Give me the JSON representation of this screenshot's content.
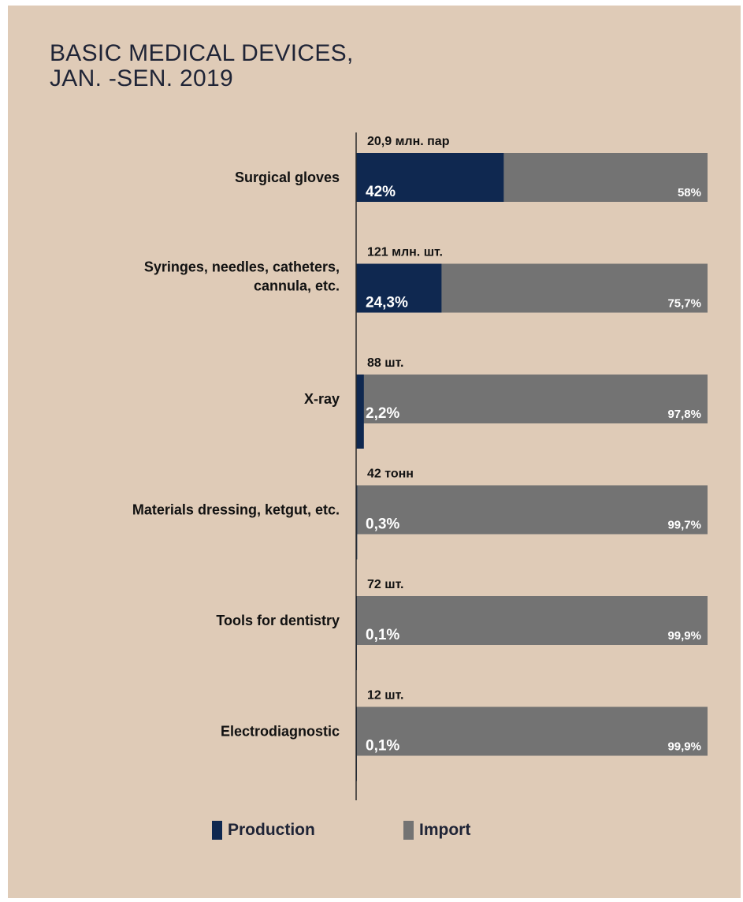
{
  "title_lines": [
    "BASIC MEDICAL DEVICES,",
    "JAN. -SEN. 2019"
  ],
  "colors": {
    "background": "#dfcbb7",
    "production": "#0f2850",
    "import": "#737373",
    "text": "#1f2436"
  },
  "legend": [
    {
      "name": "Production",
      "color": "#0f2850"
    },
    {
      "name": "Import",
      "color": "#737373"
    }
  ],
  "chart_data": {
    "type": "bar",
    "orientation": "horizontal",
    "stacked": true,
    "categories": [
      [
        "Surgical gloves"
      ],
      [
        "Syringes, needles, catheters,",
        "cannula, etc."
      ],
      [
        "X-ray"
      ],
      [
        "Materials dressing, ketgut, etc."
      ],
      [
        "Tools for dentistry"
      ],
      [
        "Electrodiagnostic"
      ]
    ],
    "volumes": [
      "20,9 млн. пар",
      "121 млн. шт.",
      "88 шт.",
      "42 тонн",
      "72 шт.",
      "12 шт."
    ],
    "series": [
      {
        "name": "Production",
        "values": [
          42,
          24.3,
          2.2,
          0.3,
          0.1,
          0.1
        ],
        "labels": [
          "42%",
          "24,3%",
          "2,2%",
          "0,3%",
          "0,1%",
          "0,1%"
        ]
      },
      {
        "name": "Import",
        "values": [
          58,
          75.7,
          97.8,
          99.7,
          99.9,
          99.9
        ],
        "labels": [
          "58%",
          "75,7%",
          "97,8%",
          "99,7%",
          "99,9%",
          "99,9%"
        ]
      }
    ],
    "xlim": [
      0,
      100
    ],
    "grid": false,
    "legend_position": "bottom"
  }
}
